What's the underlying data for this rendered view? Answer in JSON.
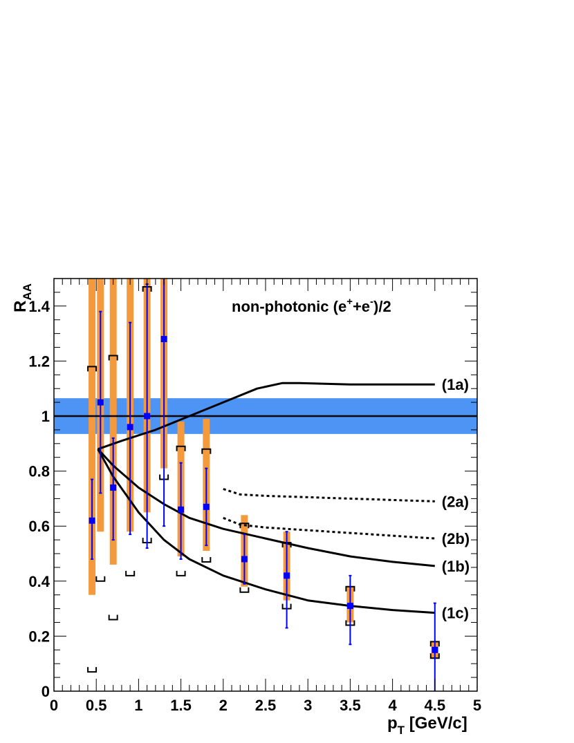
{
  "chart_data": {
    "type": "scatter",
    "annotation": {
      "main": "non-photonic (e",
      "sup1": "+",
      "mid": "+e",
      "sup2": "-",
      "tail": ")/2"
    },
    "xlabel": {
      "main": "p",
      "sub": "T",
      "rest": " [GeV/c]"
    },
    "ylabel": {
      "main": "R",
      "sub": "AA"
    },
    "xlim": [
      0,
      5
    ],
    "ylim": [
      0,
      1.5
    ],
    "x_ticks": [
      "0",
      "0.5",
      "1",
      "1.5",
      "2",
      "2.5",
      "3",
      "3.5",
      "4",
      "4.5",
      "5"
    ],
    "y_ticks": [
      "0",
      "0.2",
      "0.4",
      "0.6",
      "0.8",
      "1",
      "1.2",
      "1.4"
    ],
    "reference_line": {
      "y": 1.0,
      "band": [
        0.935,
        1.065
      ],
      "band_color": "#4d94f5"
    },
    "colors": {
      "points": "#0000ff",
      "syst_band": "#f59a3c",
      "curves": "#000000"
    },
    "points": [
      {
        "x": 0.45,
        "y": 0.62,
        "stat": [
          0.48,
          0.77
        ],
        "syst": [
          0.35,
          1.5
        ],
        "bracket_hi": 1.18,
        "bracket_lo": 0.07
      },
      {
        "x": 0.55,
        "y": 1.05,
        "stat": [
          0.72,
          1.38
        ],
        "syst": [
          0.58,
          1.5
        ],
        "bracket_hi": null,
        "bracket_lo": 0.4
      },
      {
        "x": 0.7,
        "y": 0.74,
        "stat": [
          0.55,
          0.92
        ],
        "syst": [
          0.46,
          1.5
        ],
        "bracket_hi": 1.22,
        "bracket_lo": 0.26
      },
      {
        "x": 0.9,
        "y": 0.96,
        "stat": [
          0.57,
          1.34
        ],
        "syst": [
          0.58,
          1.5
        ],
        "bracket_hi": null,
        "bracket_lo": 0.42
      },
      {
        "x": 1.1,
        "y": 1.0,
        "stat": [
          0.52,
          1.48
        ],
        "syst": [
          0.65,
          1.5
        ],
        "bracket_hi": 1.47,
        "bracket_lo": 0.54
      },
      {
        "x": 1.3,
        "y": 1.28,
        "stat": [
          0.6,
          1.5
        ],
        "syst": [
          0.81,
          1.5
        ],
        "bracket_hi": null,
        "bracket_lo": 0.77
      },
      {
        "x": 1.5,
        "y": 0.66,
        "stat": [
          0.48,
          0.83
        ],
        "syst": [
          0.49,
          0.98
        ],
        "bracket_hi": 0.89,
        "bracket_lo": 0.42
      },
      {
        "x": 1.8,
        "y": 0.67,
        "stat": [
          0.53,
          0.81
        ],
        "syst": [
          0.51,
          0.99
        ],
        "bracket_hi": 0.88,
        "bracket_lo": 0.47
      },
      {
        "x": 2.25,
        "y": 0.48,
        "stat": [
          0.39,
          0.57
        ],
        "syst": [
          0.38,
          0.64
        ],
        "bracket_hi": 0.61,
        "bracket_lo": 0.36
      },
      {
        "x": 2.75,
        "y": 0.42,
        "stat": [
          0.23,
          0.58
        ],
        "syst": [
          0.33,
          0.58
        ],
        "bracket_hi": 0.54,
        "bracket_lo": 0.3
      },
      {
        "x": 3.5,
        "y": 0.31,
        "stat": [
          0.17,
          0.42
        ],
        "syst": [
          0.25,
          0.38
        ],
        "bracket_hi": 0.38,
        "bracket_lo": 0.24
      },
      {
        "x": 4.5,
        "y": 0.15,
        "stat": [
          0.0,
          0.32
        ],
        "syst": [
          0.12,
          0.18
        ],
        "bracket_hi": 0.18,
        "bracket_lo": 0.12
      }
    ],
    "curves": [
      {
        "label": "(1a)",
        "style": "solid",
        "points": [
          [
            0.52,
            0.88
          ],
          [
            0.8,
            0.91
          ],
          [
            1.2,
            0.95
          ],
          [
            1.6,
            1.0
          ],
          [
            2.0,
            1.05
          ],
          [
            2.4,
            1.1
          ],
          [
            2.7,
            1.12
          ],
          [
            2.9,
            1.12
          ],
          [
            3.5,
            1.115
          ],
          [
            4.5,
            1.115
          ]
        ]
      },
      {
        "label": "(1b)",
        "style": "solid",
        "points": [
          [
            0.52,
            0.88
          ],
          [
            0.7,
            0.82
          ],
          [
            1.0,
            0.74
          ],
          [
            1.3,
            0.68
          ],
          [
            1.6,
            0.63
          ],
          [
            2.0,
            0.59
          ],
          [
            2.5,
            0.555
          ],
          [
            3.0,
            0.52
          ],
          [
            3.5,
            0.49
          ],
          [
            4.0,
            0.47
          ],
          [
            4.5,
            0.455
          ]
        ]
      },
      {
        "label": "(1c)",
        "style": "solid",
        "points": [
          [
            0.52,
            0.88
          ],
          [
            0.7,
            0.78
          ],
          [
            1.0,
            0.65
          ],
          [
            1.3,
            0.55
          ],
          [
            1.6,
            0.48
          ],
          [
            2.0,
            0.42
          ],
          [
            2.5,
            0.37
          ],
          [
            3.0,
            0.33
          ],
          [
            3.5,
            0.31
          ],
          [
            4.0,
            0.295
          ],
          [
            4.5,
            0.285
          ]
        ]
      },
      {
        "label": "(2a)",
        "style": "dotted",
        "points": [
          [
            2.0,
            0.735
          ],
          [
            2.2,
            0.715
          ],
          [
            2.5,
            0.71
          ],
          [
            3.0,
            0.705
          ],
          [
            3.5,
            0.7
          ],
          [
            4.0,
            0.695
          ],
          [
            4.5,
            0.69
          ]
        ]
      },
      {
        "label": "(2b)",
        "style": "dotted",
        "points": [
          [
            2.0,
            0.63
          ],
          [
            2.2,
            0.605
          ],
          [
            2.5,
            0.595
          ],
          [
            3.0,
            0.585
          ],
          [
            3.5,
            0.575
          ],
          [
            4.0,
            0.565
          ],
          [
            4.5,
            0.555
          ]
        ]
      }
    ]
  }
}
